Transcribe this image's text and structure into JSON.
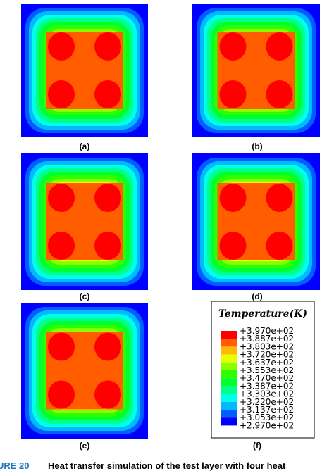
{
  "panels": [
    {
      "label": "(a)"
    },
    {
      "label": "(b)"
    },
    {
      "label": "(c)"
    },
    {
      "label": "(d)"
    },
    {
      "label": "(e)"
    },
    {
      "label": "(f)"
    }
  ],
  "legend": {
    "title": "Temperature(K)",
    "labels": [
      "+3.970e+02",
      "+3.887e+02",
      "+3.803e+02",
      "+3.720e+02",
      "+3.637e+02",
      "+3.553e+02",
      "+3.470e+02",
      "+3.387e+02",
      "+3.303e+02",
      "+3.220e+02",
      "+3.137e+02",
      "+3.053e+02",
      "+2.970e+02"
    ]
  },
  "caption": {
    "number": "URE 20",
    "text": "Heat transfer simulation of the test layer with four heat"
  }
}
